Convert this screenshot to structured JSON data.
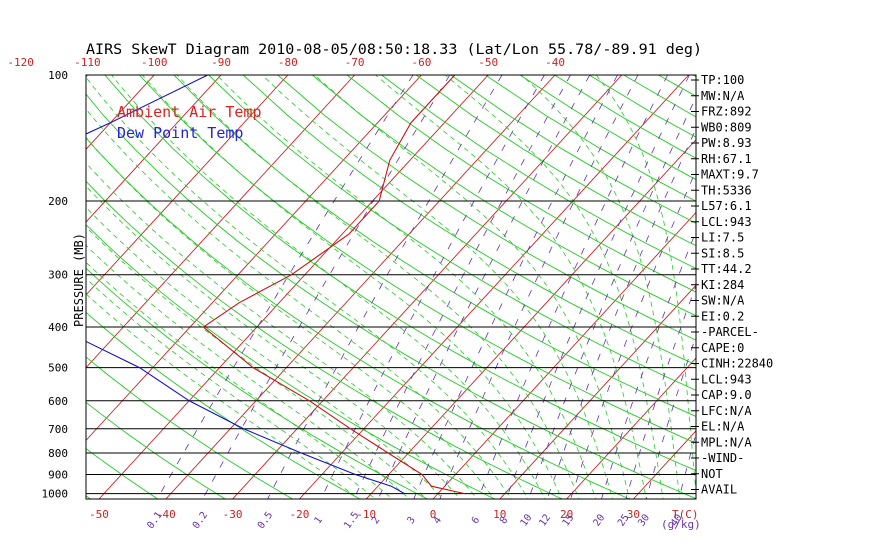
{
  "title": "AIRS SkewT Diagram 2010-08-05/08:50:18.33 (Lat/Lon 55.78/-89.91 deg)",
  "legend": [
    {
      "label": "Ambient Air Temp",
      "color": "#dd2222"
    },
    {
      "label": "Dew Point Temp",
      "color": "#2222dd"
    }
  ],
  "colors": {
    "temperature": "#cc1111",
    "dewpoint": "#1111cc",
    "isotherm": "#cc2222",
    "dry_adiabat": "#22cc22",
    "moist_adiabat": "#22cc22",
    "mixing_ratio": "#6633aa",
    "isobar": "#000000",
    "axis_labels": "#cc2222",
    "mixing_labels": "#6633aa"
  },
  "chart_data": {
    "type": "line",
    "skew_t": true,
    "ylabel": "PRESSURE (MB)",
    "pressure_ticks": [
      "100",
      "200",
      "300",
      "400",
      "500",
      "600",
      "700",
      "800",
      "900",
      "1000"
    ],
    "pressure_values": [
      100,
      200,
      300,
      400,
      500,
      600,
      700,
      800,
      900,
      1000
    ],
    "ylim": [
      1000,
      100
    ],
    "y_scale": "log",
    "top_temp_ticks": [
      "-120",
      "-110",
      "-100",
      "-90",
      "-80",
      "-70",
      "-60",
      "-50",
      "-40"
    ],
    "top_temp_values": [
      -120,
      -110,
      -100,
      -90,
      -80,
      -70,
      -60,
      -50,
      -40
    ],
    "bottom_temp_ticks": [
      "-50",
      "-40",
      "-30",
      "-20",
      "-10",
      "0",
      "10",
      "20",
      "30"
    ],
    "bottom_temp_values": [
      -50,
      -40,
      -30,
      -20,
      -10,
      0,
      10,
      20,
      30
    ],
    "x_unit_label": "T(C)",
    "mixing_ratio_ticks": [
      "0.1",
      "0.2",
      "0.5",
      "1",
      "1.5",
      "2",
      "3",
      "4",
      "6",
      "8",
      "10",
      "12",
      "15",
      "20",
      "25",
      "30",
      "40"
    ],
    "mixing_ratio_values": [
      0.1,
      0.2,
      0.5,
      1,
      1.5,
      2,
      3,
      4,
      6,
      8,
      10,
      12,
      15,
      20,
      25,
      30,
      40
    ],
    "mixing_ratio_unit": "(g/kg)",
    "series": [
      {
        "name": "Ambient Air Temp",
        "pressure": [
          100,
          130,
          160,
          200,
          240,
          300,
          350,
          400,
          500,
          600,
          700,
          800,
          900,
          960,
          1000
        ],
        "temperature": [
          -55,
          -55,
          -53,
          -49,
          -49,
          -52,
          -56,
          -58,
          -45,
          -32,
          -22,
          -13,
          -5,
          -2,
          4
        ]
      },
      {
        "name": "Dew Point Temp",
        "pressure": [
          100,
          130,
          160,
          200,
          250,
          300,
          400,
          500,
          600,
          700,
          800,
          900,
          960,
          1000
        ],
        "temperature": [
          -92,
          -100,
          -107,
          -113,
          -109,
          -97,
          -80,
          -62,
          -50,
          -38,
          -26,
          -15,
          -8,
          -5
        ]
      }
    ],
    "indices": [
      "TP:100",
      "MW:N/A",
      "FRZ:892",
      "WB0:809",
      "PW:8.93",
      "RH:67.1",
      "MAXT:9.7",
      "TH:5336",
      "L57:6.1",
      "LCL:943",
      "LI:7.5",
      "SI:8.5",
      "TT:44.2",
      "KI:284",
      "SW:N/A",
      "EI:0.2",
      "-PARCEL-",
      "CAPE:0",
      "CINH:22840",
      "LCL:943",
      "CAP:9.0",
      "LFC:N/A",
      "EL:N/A",
      "MPL:N/A",
      "-WIND-",
      "NOT",
      "AVAIL"
    ]
  }
}
